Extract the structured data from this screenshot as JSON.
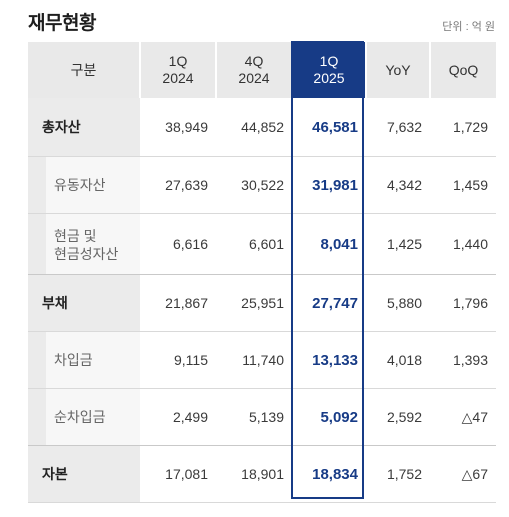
{
  "title": "재무현황",
  "unit": "단위 : 억 원",
  "columns": [
    {
      "l1": "구분",
      "l2": ""
    },
    {
      "l1": "1Q",
      "l2": "2024"
    },
    {
      "l1": "4Q",
      "l2": "2024"
    },
    {
      "l1": "1Q",
      "l2": "2025"
    },
    {
      "l1": "YoY",
      "l2": ""
    },
    {
      "l1": "QoQ",
      "l2": ""
    }
  ],
  "rows": [
    {
      "l1": "총자산",
      "l2": "",
      "values": [
        "38,949",
        "44,852",
        "46,581",
        "7,632",
        "1,729"
      ]
    },
    {
      "l1": "유동자산",
      "l2": "",
      "values": [
        "27,639",
        "30,522",
        "31,981",
        "4,342",
        "1,459"
      ]
    },
    {
      "l1": "현금 및",
      "l2": "현금성자산",
      "values": [
        "6,616",
        "6,601",
        "8,041",
        "1,425",
        "1,440"
      ]
    },
    {
      "l1": "부채",
      "l2": "",
      "values": [
        "21,867",
        "25,951",
        "27,747",
        "5,880",
        "1,796"
      ]
    },
    {
      "l1": "차입금",
      "l2": "",
      "values": [
        "9,115",
        "11,740",
        "13,133",
        "4,018",
        "1,393"
      ]
    },
    {
      "l1": "순차입금",
      "l2": "",
      "values": [
        "2,499",
        "5,139",
        "5,092",
        "2,592",
        "△47"
      ]
    },
    {
      "l1": "자본",
      "l2": "",
      "values": [
        "17,081",
        "18,901",
        "18,834",
        "1,752",
        "△67"
      ]
    }
  ]
}
